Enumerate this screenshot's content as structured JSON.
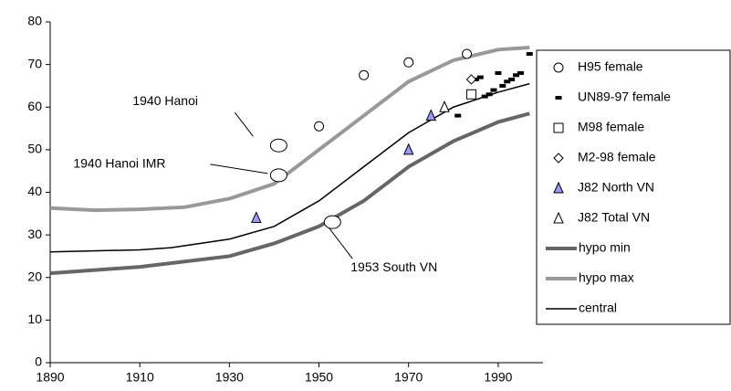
{
  "chart_data": {
    "type": "scatter",
    "xlim": [
      1890,
      2000
    ],
    "xticks": [
      1890,
      1910,
      1930,
      1950,
      1970,
      1990
    ],
    "ylim": [
      0,
      80
    ],
    "yticks": [
      0,
      10,
      20,
      30,
      40,
      50,
      60,
      70,
      80
    ],
    "series": [
      {
        "name": "H95 female",
        "kind": "points",
        "marker": "circle",
        "color": "#000000",
        "x": [
          1950,
          1960,
          1970,
          1983
        ],
        "values": [
          55.5,
          67.5,
          70.5,
          72.5
        ]
      },
      {
        "name": "UN89-97 female",
        "kind": "points",
        "marker": "dash",
        "color": "#000000",
        "x": [
          1981,
          1985,
          1986,
          1987,
          1988,
          1989,
          1990,
          1991,
          1992,
          1993,
          1994,
          1995,
          1997
        ],
        "values": [
          58,
          66.5,
          67,
          62.5,
          63,
          64,
          68,
          65,
          66,
          66.5,
          67.5,
          68,
          72.5
        ]
      },
      {
        "name": "M98 female",
        "kind": "points",
        "marker": "square",
        "color": "#000000",
        "x": [
          1984
        ],
        "values": [
          63
        ]
      },
      {
        "name": "M2-98 female",
        "kind": "points",
        "marker": "diamond",
        "color": "#000000",
        "x": [
          1984
        ],
        "values": [
          66.5
        ]
      },
      {
        "name": "J82 North VN",
        "kind": "points",
        "marker": "triangle",
        "color": "#9999ff",
        "x": [
          1936,
          1970,
          1975
        ],
        "values": [
          34,
          50,
          58
        ]
      },
      {
        "name": "J82 Total VN",
        "kind": "points",
        "marker": "triangle",
        "color": "#ffffff",
        "x": [
          1978
        ],
        "values": [
          60
        ]
      },
      {
        "name": "hypo min",
        "kind": "line",
        "width": 4,
        "color": "#666666",
        "x": [
          1890,
          1910,
          1930,
          1940,
          1950,
          1960,
          1970,
          1980,
          1990,
          1997
        ],
        "values": [
          21,
          22.5,
          25,
          28,
          32,
          38,
          46,
          52,
          56.5,
          58.5
        ]
      },
      {
        "name": "hypo max",
        "kind": "line",
        "width": 4,
        "color": "#999999",
        "x": [
          1890,
          1900,
          1910,
          1920,
          1930,
          1940,
          1950,
          1960,
          1970,
          1980,
          1990,
          1997
        ],
        "values": [
          36.3,
          35.8,
          36,
          36.5,
          38.5,
          42,
          50,
          58,
          66,
          71,
          73.5,
          74
        ]
      },
      {
        "name": "central",
        "kind": "line",
        "width": 1.5,
        "color": "#000000",
        "x": [
          1890,
          1910,
          1917,
          1930,
          1940,
          1950,
          1960,
          1970,
          1980,
          1990,
          1997
        ],
        "values": [
          26,
          26.5,
          27,
          29,
          32,
          38,
          46,
          54,
          60,
          63.5,
          65.5
        ]
      }
    ],
    "annotations": [
      {
        "text": "1940 Hanoi",
        "x": 1941,
        "y": 51
      },
      {
        "text": "1940 Hanoi IMR",
        "x": 1941,
        "y": 44
      },
      {
        "text": "1953 South VN",
        "x": 1953,
        "y": 33
      }
    ]
  }
}
